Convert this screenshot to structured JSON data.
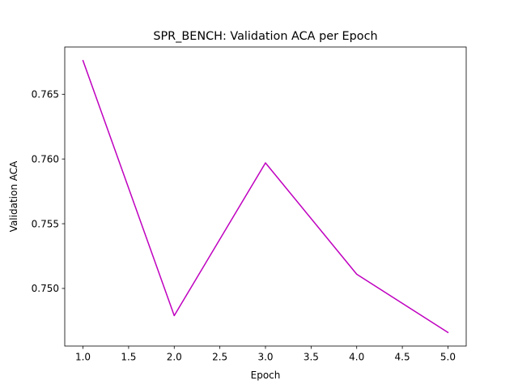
{
  "chart_data": {
    "type": "line",
    "title": "SPR_BENCH: Validation ACA per Epoch",
    "xlabel": "Epoch",
    "ylabel": "Validation ACA",
    "x": [
      1,
      2,
      3,
      4,
      5
    ],
    "series": [
      {
        "name": "Validation ACA",
        "values": [
          0.7676,
          0.7479,
          0.7597,
          0.7511,
          0.7466
        ],
        "color": "#bf00bf"
      }
    ],
    "xlim": [
      0.8,
      5.2
    ],
    "ylim": [
      0.74555,
      0.76865
    ],
    "xticks": [
      "1.0",
      "1.5",
      "2.0",
      "2.5",
      "3.0",
      "3.5",
      "4.0",
      "4.5",
      "5.0"
    ],
    "xtick_values": [
      1.0,
      1.5,
      2.0,
      2.5,
      3.0,
      3.5,
      4.0,
      4.5,
      5.0
    ],
    "yticks": [
      "0.750",
      "0.755",
      "0.760",
      "0.765"
    ],
    "ytick_values": [
      0.75,
      0.755,
      0.76,
      0.765
    ],
    "grid": false,
    "legend": "none"
  }
}
